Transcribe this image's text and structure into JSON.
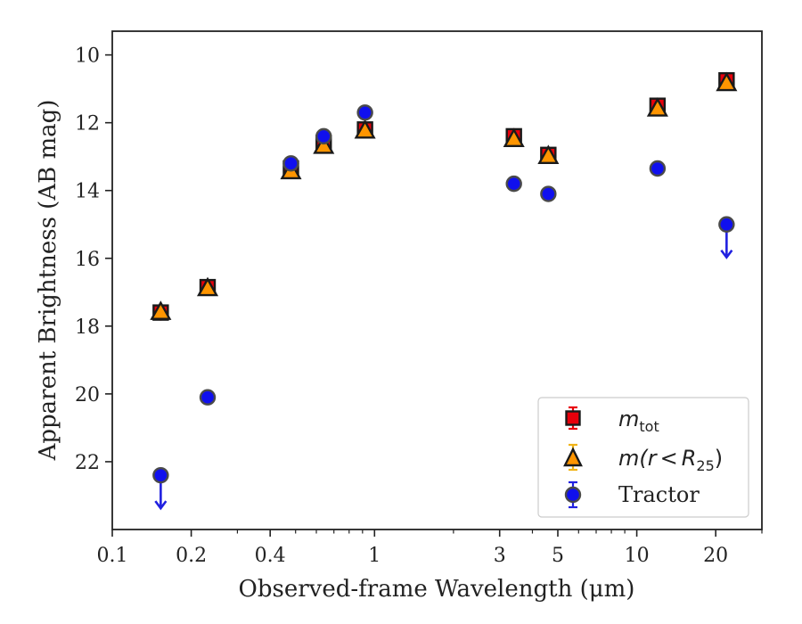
{
  "chart_data": {
    "type": "scatter",
    "xlabel": "Observed-frame Wavelength (μm)",
    "ylabel": "Apparent Brightness (AB mag)",
    "xscale": "log",
    "xlim": [
      0.1,
      30
    ],
    "ylim": [
      24.0,
      9.3
    ],
    "y_inverted": true,
    "xticks": [
      {
        "value": 0.1,
        "label": "0.1"
      },
      {
        "value": 0.2,
        "label": "0.2"
      },
      {
        "value": 0.4,
        "label": "0.4"
      },
      {
        "value": 1,
        "label": "1"
      },
      {
        "value": 3,
        "label": "3"
      },
      {
        "value": 5,
        "label": "5"
      },
      {
        "value": 10,
        "label": "10"
      },
      {
        "value": 20,
        "label": "20"
      }
    ],
    "yticks": [
      {
        "value": 10,
        "label": "10"
      },
      {
        "value": 12,
        "label": "12"
      },
      {
        "value": 14,
        "label": "14"
      },
      {
        "value": 16,
        "label": "16"
      },
      {
        "value": 18,
        "label": "18"
      },
      {
        "value": 20,
        "label": "20"
      },
      {
        "value": 22,
        "label": "22"
      }
    ],
    "legend_position": "lower-right",
    "series": [
      {
        "name": "m_tot",
        "marker": "square",
        "color": "#e8000b",
        "edge_color": "#1a1a1a",
        "error_color": "#e8000b",
        "points": [
          {
            "x": 0.153,
            "y": 17.6
          },
          {
            "x": 0.231,
            "y": 16.85
          },
          {
            "x": 0.48,
            "y": 13.35
          },
          {
            "x": 0.64,
            "y": 12.6
          },
          {
            "x": 0.92,
            "y": 12.2
          },
          {
            "x": 3.4,
            "y": 12.4
          },
          {
            "x": 4.6,
            "y": 12.95
          },
          {
            "x": 12.0,
            "y": 11.5
          },
          {
            "x": 22.0,
            "y": 10.75
          }
        ]
      },
      {
        "name": "m(r < R_25)",
        "marker": "triangle",
        "color": "#ff9500",
        "edge_color": "#1a1a1a",
        "error_color": "#f1b418",
        "points": [
          {
            "x": 0.153,
            "y": 17.55
          },
          {
            "x": 0.231,
            "y": 16.85
          },
          {
            "x": 0.48,
            "y": 13.4
          },
          {
            "x": 0.64,
            "y": 12.65
          },
          {
            "x": 0.92,
            "y": 12.2
          },
          {
            "x": 3.4,
            "y": 12.45
          },
          {
            "x": 4.6,
            "y": 12.95
          },
          {
            "x": 12.0,
            "y": 11.55
          },
          {
            "x": 22.0,
            "y": 10.8
          }
        ]
      },
      {
        "name": "Tractor",
        "marker": "circle",
        "color": "#1010ee",
        "edge_color": "#4a4a4a",
        "error_color": "#2020e0",
        "points": [
          {
            "x": 0.153,
            "y": 22.4,
            "upper_limit": true
          },
          {
            "x": 0.231,
            "y": 20.1
          },
          {
            "x": 0.48,
            "y": 13.2
          },
          {
            "x": 0.64,
            "y": 12.4
          },
          {
            "x": 0.92,
            "y": 11.7
          },
          {
            "x": 3.4,
            "y": 13.8
          },
          {
            "x": 4.6,
            "y": 14.1
          },
          {
            "x": 12.0,
            "y": 13.35
          },
          {
            "x": 22.0,
            "y": 15.0,
            "upper_limit": true
          }
        ]
      }
    ]
  },
  "legend": {
    "tot_symbol": "m",
    "tot_sub": "tot",
    "r25_open": "m(r",
    "r25_lt": "<",
    "r25_R": "R",
    "r25_sub": "25",
    "r25_close": ")",
    "tractor": "Tractor"
  }
}
